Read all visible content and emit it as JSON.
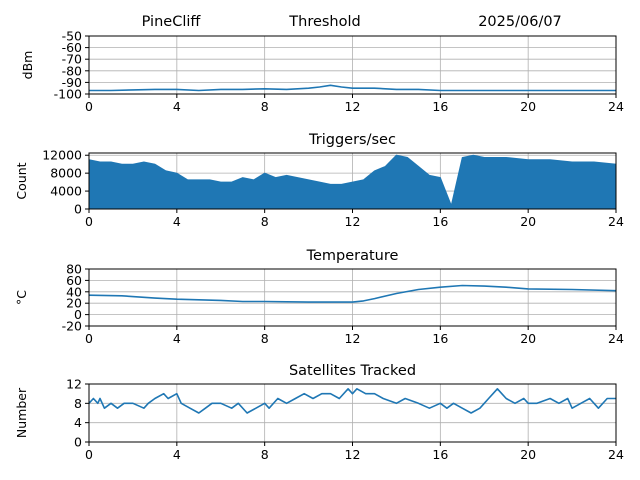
{
  "header": {
    "station": "PineCliff",
    "title": "Threshold",
    "date": "2025/06/07"
  },
  "colors": {
    "series": "#1f77b4",
    "grid": "#b0b0b0"
  },
  "chart_data": [
    {
      "type": "line",
      "title": "",
      "ylabel": "dBm",
      "xlim": [
        0,
        24
      ],
      "ylim": [
        -100,
        -50
      ],
      "x_ticks": [
        0,
        4,
        8,
        12,
        16,
        20,
        24
      ],
      "y_ticks": [
        -100,
        -90,
        -80,
        -70,
        -60,
        -50
      ],
      "grid": true,
      "x": [
        0,
        1,
        2,
        3,
        4,
        5,
        6,
        7,
        8,
        9,
        10,
        10.5,
        11,
        11.5,
        12,
        13,
        14,
        15,
        16,
        17,
        18,
        19,
        20,
        21,
        22,
        23,
        24
      ],
      "values": [
        -97,
        -97,
        -96.5,
        -96,
        -96,
        -97,
        -96,
        -96,
        -95.5,
        -96,
        -95,
        -94,
        -92.5,
        -94,
        -95,
        -95,
        -96,
        -96,
        -97,
        -97,
        -97,
        -97,
        -97,
        -97,
        -97,
        -97,
        -97
      ]
    },
    {
      "type": "area",
      "title": "Triggers/sec",
      "ylabel": "Count",
      "xlim": [
        0,
        24
      ],
      "ylim": [
        0,
        12500
      ],
      "x_ticks": [
        0,
        4,
        8,
        12,
        16,
        20,
        24
      ],
      "y_ticks": [
        0,
        4000,
        8000,
        12000
      ],
      "grid": true,
      "x": [
        0,
        0.5,
        1,
        1.5,
        2,
        2.5,
        3,
        3.5,
        4,
        4.5,
        5,
        5.5,
        6,
        6.5,
        7,
        7.5,
        8,
        8.5,
        9,
        9.5,
        10,
        10.5,
        11,
        11.5,
        12,
        12.5,
        13,
        13.5,
        14,
        14.5,
        15,
        15.5,
        16,
        16.5,
        17,
        17.5,
        18,
        19,
        20,
        21,
        22,
        23,
        24
      ],
      "values": [
        11000,
        10500,
        10500,
        10000,
        10000,
        10500,
        10000,
        8500,
        8000,
        6500,
        6500,
        6500,
        6000,
        6000,
        7000,
        6500,
        8000,
        7000,
        7500,
        7000,
        6500,
        6000,
        5500,
        5500,
        6000,
        6500,
        8500,
        9500,
        12000,
        11500,
        9500,
        7500,
        7000,
        800,
        11500,
        12000,
        11500,
        11500,
        11000,
        11000,
        10500,
        10500,
        10000
      ]
    },
    {
      "type": "line",
      "title": "Temperature",
      "ylabel": "°C",
      "xlim": [
        0,
        24
      ],
      "ylim": [
        -20,
        80
      ],
      "x_ticks": [
        0,
        4,
        8,
        12,
        16,
        20,
        24
      ],
      "y_ticks": [
        -20,
        0,
        20,
        40,
        60,
        80
      ],
      "grid": true,
      "x": [
        0,
        1.5,
        3,
        4,
        6,
        7,
        8,
        10,
        11,
        12,
        12.5,
        13,
        14,
        15,
        16,
        17,
        18,
        19,
        20,
        22,
        24
      ],
      "values": [
        34,
        33,
        29,
        27,
        25,
        23,
        23,
        22,
        22,
        22,
        24,
        28,
        37,
        44,
        48,
        51,
        50,
        48,
        45,
        44,
        42
      ]
    },
    {
      "type": "line",
      "title": "Satellites Tracked",
      "ylabel": "Number",
      "xlim": [
        0,
        24
      ],
      "ylim": [
        0,
        12
      ],
      "x_ticks": [
        0,
        4,
        8,
        12,
        16,
        20,
        24
      ],
      "y_ticks": [
        0,
        4,
        8,
        12
      ],
      "grid": true,
      "x": [
        0,
        0.2,
        0.4,
        0.5,
        0.7,
        1,
        1.3,
        1.6,
        2,
        2.5,
        2.7,
        3,
        3.4,
        3.6,
        4,
        4.2,
        4.6,
        5,
        5.3,
        5.6,
        6,
        6.5,
        6.8,
        7.2,
        7.6,
        8,
        8.2,
        8.6,
        9,
        9.4,
        9.8,
        10.2,
        10.6,
        11,
        11.4,
        11.8,
        12,
        12.2,
        12.6,
        13,
        13.4,
        14,
        14.4,
        15,
        15.5,
        16,
        16.3,
        16.6,
        17,
        17.4,
        17.8,
        18,
        18.2,
        18.4,
        18.6,
        18.8,
        19,
        19.4,
        19.8,
        20,
        20.4,
        21,
        21.4,
        21.8,
        22,
        22.4,
        22.8,
        23,
        23.2,
        23.6,
        24
      ],
      "values": [
        8,
        9,
        8,
        9,
        7,
        8,
        7,
        8,
        8,
        7,
        8,
        9,
        10,
        9,
        10,
        8,
        7,
        6,
        7,
        8,
        8,
        7,
        8,
        6,
        7,
        8,
        7,
        9,
        8,
        9,
        10,
        9,
        10,
        10,
        9,
        11,
        10,
        11,
        10,
        10,
        9,
        8,
        9,
        8,
        7,
        8,
        7,
        8,
        7,
        6,
        7,
        8,
        9,
        10,
        11,
        10,
        9,
        8,
        9,
        8,
        8,
        9,
        8,
        9,
        7,
        8,
        9,
        8,
        7,
        9,
        9
      ]
    }
  ]
}
